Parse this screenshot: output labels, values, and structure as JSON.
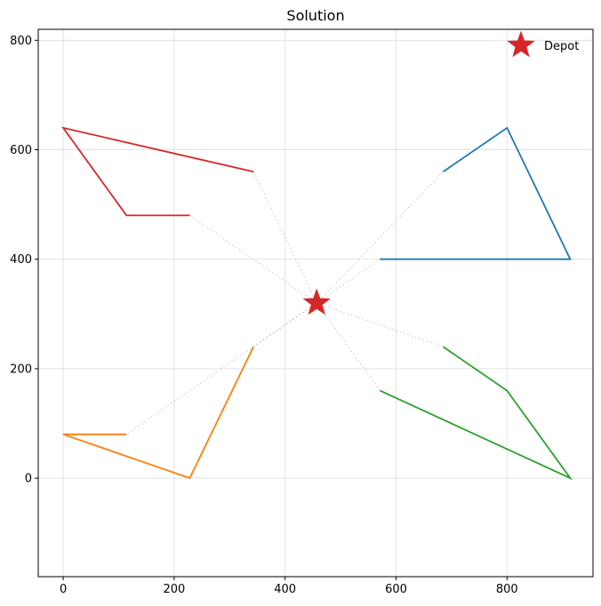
{
  "chart_data": {
    "type": "line",
    "title": "Solution",
    "xlim": [
      -45,
      955
    ],
    "ylim": [
      -180,
      820
    ],
    "x_ticks": [
      0,
      200,
      400,
      600,
      800
    ],
    "y_ticks": [
      0,
      200,
      400,
      600,
      800
    ],
    "grid": true,
    "legend": {
      "placement": "top-right",
      "entries": [
        "Depot"
      ]
    },
    "depot": {
      "x": 457,
      "y": 320,
      "color": "#d62728"
    },
    "routes": [
      {
        "color": "#1f77b4",
        "points": [
          [
            685,
            560
          ],
          [
            800,
            640
          ],
          [
            914,
            400
          ],
          [
            571,
            400
          ]
        ]
      },
      {
        "color": "#ff7f0e",
        "points": [
          [
            114,
            80
          ],
          [
            0,
            80
          ],
          [
            228,
            0
          ],
          [
            343,
            240
          ]
        ]
      },
      {
        "color": "#2ca02c",
        "points": [
          [
            685,
            240
          ],
          [
            800,
            160
          ],
          [
            914,
            0
          ],
          [
            571,
            160
          ]
        ]
      },
      {
        "color": "#d62728",
        "points": [
          [
            343,
            560
          ],
          [
            0,
            640
          ],
          [
            114,
            480
          ],
          [
            228,
            480
          ]
        ]
      }
    ]
  }
}
